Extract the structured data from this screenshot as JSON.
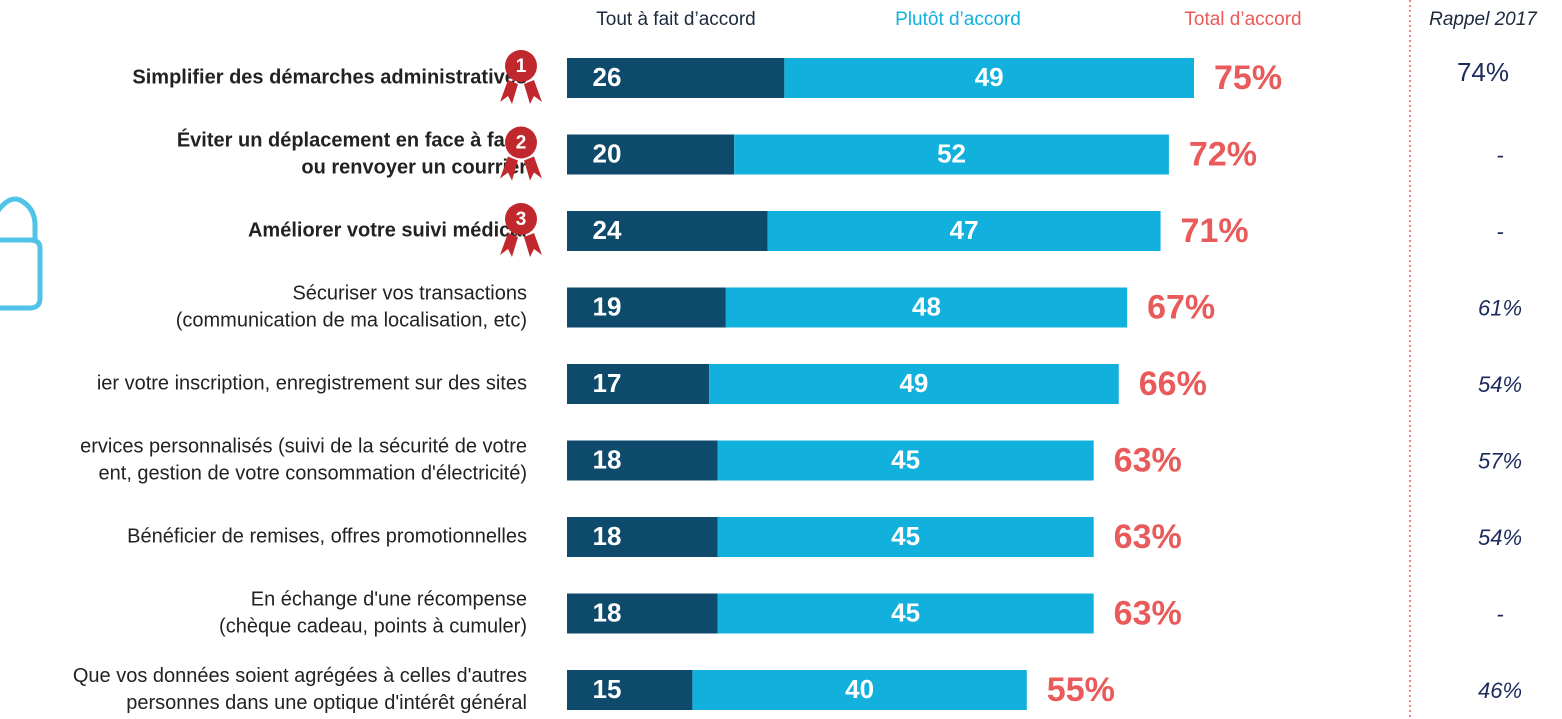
{
  "chart_data": {
    "type": "stacked_bar_horizontal",
    "categories": [
      [
        "Simplifier des démarches administratives"
      ],
      [
        "Éviter un déplacement en face à face",
        "ou renvoyer un courrier"
      ],
      [
        "Améliorer votre suivi médical"
      ],
      [
        "Sécuriser vos transactions",
        "(communication de ma localisation, etc)"
      ],
      [
        "ier votre inscription, enregistrement sur des sites"
      ],
      [
        "ervices personnalisés (suivi de la sécurité de votre",
        "ent, gestion de votre consommation d'électricité)"
      ],
      [
        "Bénéficier de remises, offres promotionnelles"
      ],
      [
        "En échange d'une récompense",
        "(chèque cadeau, points à cumuler)"
      ],
      [
        "Que vos données soient agrégées à celles d'autres",
        "personnes dans une optique d'intérêt général"
      ]
    ],
    "ranks": [
      "1",
      "2",
      "3",
      null,
      null,
      null,
      null,
      null,
      null
    ],
    "series": [
      {
        "name": "Tout à fait d’accord",
        "color": "#0d4a6b",
        "values": [
          26,
          20,
          24,
          19,
          17,
          18,
          18,
          18,
          15
        ]
      },
      {
        "name": "Plutôt d’accord",
        "color": "#12b0dc",
        "values": [
          49,
          52,
          47,
          48,
          49,
          45,
          45,
          45,
          40
        ]
      }
    ],
    "totals": {
      "name": "Total d’accord",
      "color": "#e95a5a",
      "values": [
        75,
        72,
        71,
        67,
        66,
        63,
        63,
        63,
        55
      ],
      "value_labels": [
        "75%",
        "72%",
        "71%",
        "67%",
        "66%",
        "63%",
        "63%",
        "63%",
        "55%"
      ]
    },
    "recall": {
      "name": "Rappel 2017",
      "color": "#1d2a5c",
      "values": [
        74,
        null,
        null,
        61,
        54,
        57,
        54,
        null,
        46
      ],
      "value_labels": [
        "74%",
        "-",
        "-",
        "61%",
        "54%",
        "57%",
        "54%",
        "-",
        "46%"
      ]
    }
  }
}
